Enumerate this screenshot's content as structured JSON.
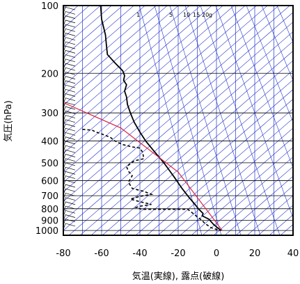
{
  "chart_data": {
    "type": "line",
    "diagram": "emagram",
    "xlabel": "気温(実線), 露点(破線)",
    "ylabel": "気圧(hPa)",
    "x_ticks": [
      -80,
      -60,
      -40,
      -20,
      0,
      20,
      40
    ],
    "y_ticks": [
      100,
      200,
      300,
      400,
      500,
      600,
      700,
      800,
      900,
      1000
    ],
    "xlim": [
      -80,
      40
    ],
    "ylim": [
      1050,
      100
    ],
    "y_scale": "log",
    "mixing_ratio_labels": [
      "1",
      "5",
      "10",
      "15",
      "20",
      "g"
    ],
    "colors": {
      "temperature": "#000000",
      "dewpoint": "#000000",
      "isotherms": "#2233cc",
      "parcel": "#dd2244",
      "frame": "#000000"
    },
    "series": [
      {
        "type": "line",
        "style": "solid",
        "points": [
          [
            -60.5,
            100
          ],
          [
            -60.0,
            115
          ],
          [
            -58.0,
            135
          ],
          [
            -57.5,
            150
          ],
          [
            -57.0,
            165
          ],
          [
            -53.0,
            180
          ],
          [
            -49.0,
            195
          ],
          [
            -48.0,
            205
          ],
          [
            -48.5,
            215
          ],
          [
            -47.0,
            225
          ],
          [
            -48.0,
            240
          ],
          [
            -47.0,
            255
          ],
          [
            -46.5,
            275
          ],
          [
            -45.0,
            300
          ],
          [
            -43.0,
            330
          ],
          [
            -40.0,
            365
          ],
          [
            -37.0,
            400
          ],
          [
            -33.0,
            440
          ],
          [
            -27.5,
            500
          ],
          [
            -22.0,
            580
          ],
          [
            -18.0,
            650
          ],
          [
            -14.5,
            710
          ],
          [
            -11.0,
            770
          ],
          [
            -9.5,
            800
          ],
          [
            -7.0,
            840
          ],
          [
            -7.5,
            860
          ],
          [
            -4.0,
            890
          ],
          [
            -1.5,
            940
          ],
          [
            1.0,
            980
          ],
          [
            2.5,
            1000
          ]
        ]
      },
      {
        "type": "line",
        "style": "dashed",
        "points": [
          [
            -70.0,
            355
          ],
          [
            -65.0,
            358
          ],
          [
            -63.0,
            365
          ],
          [
            -60.0,
            372
          ],
          [
            -58.0,
            378
          ],
          [
            -55.5,
            385
          ],
          [
            -53.0,
            400
          ],
          [
            -49.0,
            415
          ],
          [
            -44.0,
            425
          ],
          [
            -40.0,
            430
          ],
          [
            -38.5,
            450
          ],
          [
            -38.0,
            480
          ],
          [
            -43.0,
            490
          ],
          [
            -47.0,
            520
          ],
          [
            -46.0,
            545
          ],
          [
            -44.0,
            570
          ],
          [
            -46.0,
            610
          ],
          [
            -44.0,
            650
          ],
          [
            -38.0,
            670
          ],
          [
            -34.0,
            690
          ],
          [
            -40.0,
            705
          ],
          [
            -45.0,
            725
          ],
          [
            -40.0,
            745
          ],
          [
            -34.0,
            765
          ],
          [
            -40.0,
            780
          ],
          [
            -42.0,
            790
          ],
          [
            -39.0,
            805
          ],
          [
            -15.0,
            805
          ],
          [
            -13.0,
            830
          ],
          [
            -11.5,
            850
          ],
          [
            -10.0,
            870
          ],
          [
            -8.0,
            895
          ],
          [
            -6.0,
            930
          ],
          [
            -3.0,
            970
          ],
          [
            2.0,
            1000
          ]
        ]
      },
      {
        "type": "line",
        "style": "parcel",
        "points": [
          [
            -80,
            270
          ],
          [
            -50,
            350
          ],
          [
            -20,
            550
          ],
          [
            3,
            1000
          ]
        ]
      }
    ]
  }
}
